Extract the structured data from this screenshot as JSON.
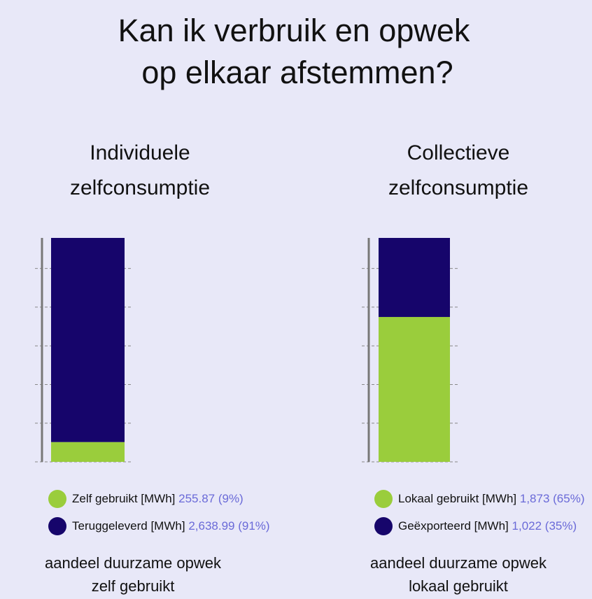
{
  "title": [
    "Kan ik verbruik en opwek",
    "op elkaar afstemmen?"
  ],
  "chart_data": [
    {
      "type": "stacked_bar",
      "title": [
        "Individuele",
        "zelfconsumptie"
      ],
      "series": [
        {
          "name": "Zelf gebruikt [MWh]",
          "color": "#9acd3c",
          "values": [
            255.87
          ],
          "value_labels": [
            "255.87 (9%)"
          ]
        },
        {
          "name": "Teruggeleverd [MWh]",
          "color": "#16056b",
          "values": [
            2638.99
          ],
          "value_labels": [
            "2,638.99 (91%)"
          ]
        }
      ],
      "ylim": [
        0,
        2894.86
      ],
      "yticks": [
        0,
        500,
        1000,
        1500,
        2000,
        2500
      ],
      "grid": true,
      "xlabel": [
        "aandeel duurzame opwek",
        "zelf gebruikt"
      ]
    },
    {
      "type": "stacked_bar",
      "title": [
        "Collectieve",
        "zelfconsumptie"
      ],
      "series": [
        {
          "name": "Lokaal gebruikt [MWh]",
          "color": "#9acd3c",
          "values": [
            1873
          ],
          "value_labels": [
            "1,873 (65%)"
          ]
        },
        {
          "name": "Geëxporteerd [MWh]",
          "color": "#16056b",
          "values": [
            1022
          ],
          "value_labels": [
            "1,022 (35%)"
          ]
        }
      ],
      "ylim": [
        0,
        2895
      ],
      "yticks": [
        0,
        500,
        1000,
        1500,
        2000,
        2500
      ],
      "grid": true,
      "xlabel": [
        "aandeel duurzame opwek",
        "lokaal gebruikt"
      ]
    }
  ]
}
